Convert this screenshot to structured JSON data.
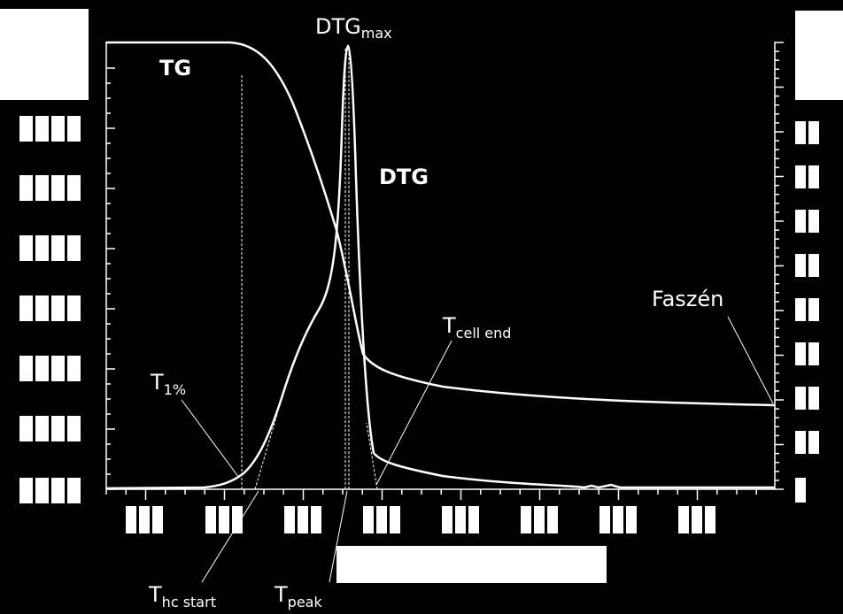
{
  "labels": {
    "tg": "TG",
    "dtg": "DTG",
    "dtg_max": {
      "main": "DTG",
      "sub": "max"
    },
    "t_1": {
      "main": "T",
      "sub": "1%"
    },
    "t_hc_start": {
      "main": "T",
      "sub": "hc start"
    },
    "t_peak": {
      "main": "T",
      "sub": "peak"
    },
    "t_cell_end": {
      "main": "T",
      "sub": "cell end"
    },
    "faszen": "Faszén"
  }
}
